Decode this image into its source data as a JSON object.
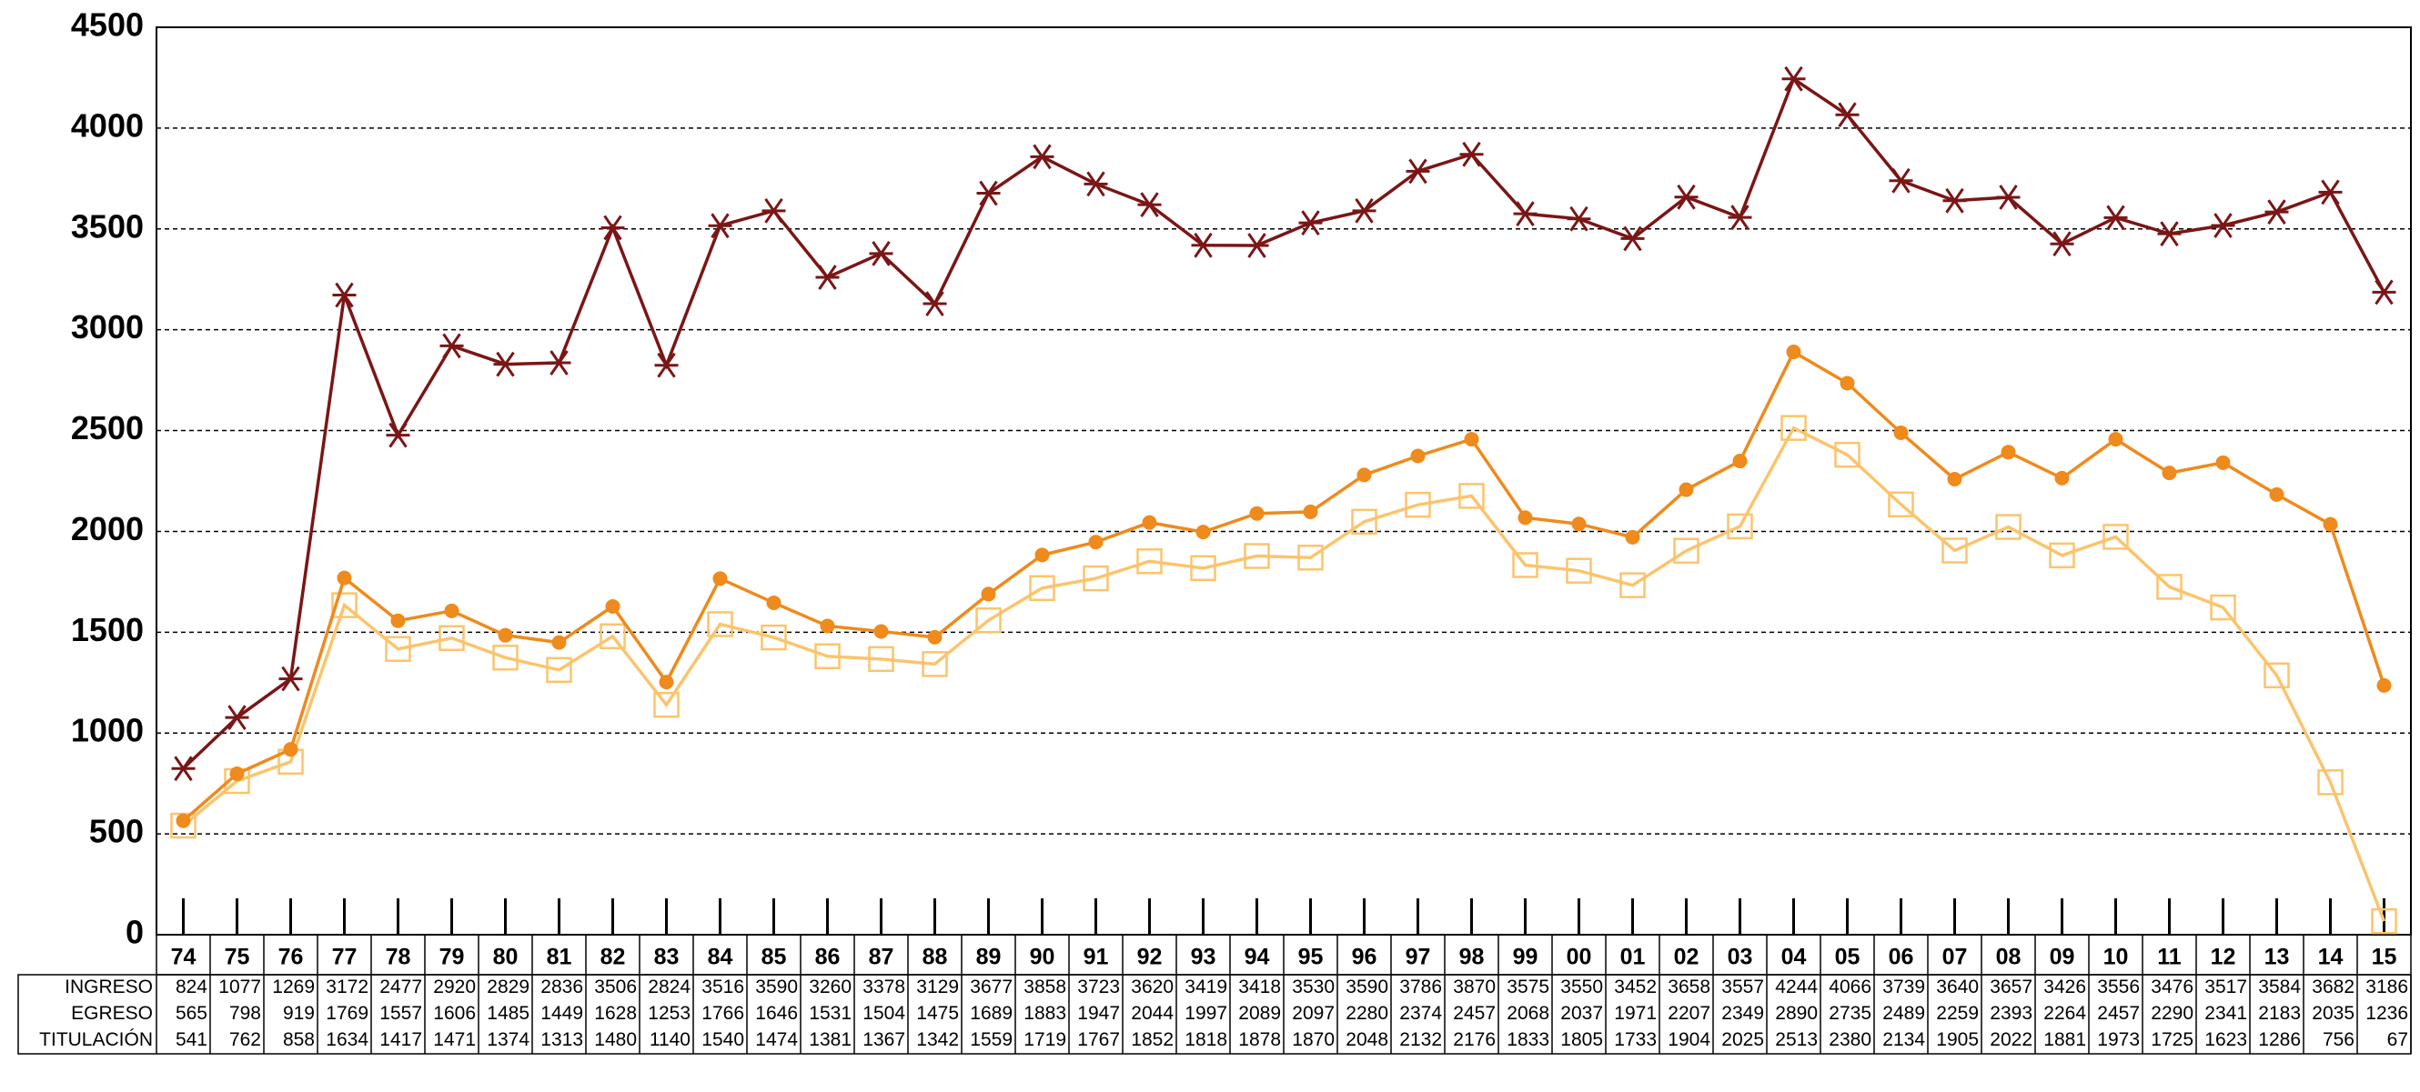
{
  "chart_data": {
    "type": "line",
    "categories": [
      "74",
      "75",
      "76",
      "77",
      "78",
      "79",
      "80",
      "81",
      "82",
      "83",
      "84",
      "85",
      "86",
      "87",
      "88",
      "89",
      "90",
      "91",
      "92",
      "93",
      "94",
      "95",
      "96",
      "97",
      "98",
      "99",
      "00",
      "01",
      "02",
      "03",
      "04",
      "05",
      "06",
      "07",
      "08",
      "09",
      "10",
      "11",
      "12",
      "13",
      "14",
      "15"
    ],
    "series": [
      {
        "name": "INGRESO",
        "color": "#7a1616",
        "marker": "star",
        "values": [
          824,
          1077,
          1269,
          3172,
          2477,
          2920,
          2829,
          2836,
          3506,
          2824,
          3516,
          3590,
          3260,
          3378,
          3129,
          3677,
          3858,
          3723,
          3620,
          3419,
          3418,
          3530,
          3590,
          3786,
          3870,
          3575,
          3550,
          3452,
          3658,
          3557,
          4244,
          4066,
          3739,
          3640,
          3657,
          3426,
          3556,
          3476,
          3517,
          3584,
          3682,
          3186
        ]
      },
      {
        "name": "EGRESO",
        "color": "#ef8a1c",
        "marker": "circle",
        "values": [
          565,
          798,
          919,
          1769,
          1557,
          1606,
          1485,
          1449,
          1628,
          1253,
          1766,
          1646,
          1531,
          1504,
          1475,
          1689,
          1883,
          1947,
          2044,
          1997,
          2089,
          2097,
          2280,
          2374,
          2457,
          2068,
          2037,
          1971,
          2207,
          2349,
          2890,
          2735,
          2489,
          2259,
          2393,
          2264,
          2457,
          2290,
          2341,
          2183,
          2035,
          1236
        ]
      },
      {
        "name": "TITULACIÓN",
        "color": "#fbc46c",
        "marker": "square",
        "values": [
          541,
          762,
          858,
          1634,
          1417,
          1471,
          1374,
          1313,
          1480,
          1140,
          1540,
          1474,
          1381,
          1367,
          1342,
          1559,
          1719,
          1767,
          1852,
          1818,
          1878,
          1870,
          2048,
          2132,
          2176,
          1833,
          1805,
          1733,
          1904,
          2025,
          2513,
          2380,
          2134,
          1905,
          2022,
          1881,
          1973,
          1725,
          1623,
          1286,
          756,
          67
        ]
      }
    ],
    "ylim": [
      0,
      4500
    ],
    "yticks": [
      0,
      500,
      1000,
      1500,
      2000,
      2500,
      3000,
      3500,
      4000,
      4500
    ],
    "grid": true
  }
}
